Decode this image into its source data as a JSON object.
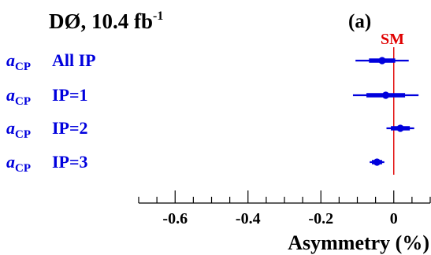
{
  "chart_data": {
    "type": "scatter",
    "title": "DØ, 10.4 fb",
    "title_superscript": "-1",
    "panel_label": "(a)",
    "xlabel": "Asymmetry (%)",
    "ylabel": "",
    "xlim": [
      -0.7,
      0.1
    ],
    "x_ticks": [
      "-0.6",
      "-0.4",
      "-0.2",
      "0"
    ],
    "x_tick_values": [
      -0.6,
      -0.4,
      -0.2,
      0
    ],
    "grid": false,
    "reference_line": {
      "label": "SM",
      "x": 0,
      "color": "#e00000"
    },
    "marker_color": "#0000dd",
    "label_prefix": "a",
    "label_subscript": "CP",
    "categories": [
      {
        "label": "All IP",
        "value": -0.032,
        "inner": [
          -0.068,
          0.004
        ],
        "outer": [
          -0.105,
          0.041
        ]
      },
      {
        "label": "IP=1",
        "value": -0.022,
        "inner": [
          -0.075,
          0.031
        ],
        "outer": [
          -0.112,
          0.068
        ]
      },
      {
        "label": "IP=2",
        "value": 0.018,
        "inner": [
          -0.008,
          0.044
        ],
        "outer": [
          -0.02,
          0.056
        ]
      },
      {
        "label": "IP=3",
        "value": -0.046,
        "inner": [
          -0.06,
          -0.032
        ],
        "outer": [
          -0.066,
          -0.026
        ]
      }
    ]
  }
}
